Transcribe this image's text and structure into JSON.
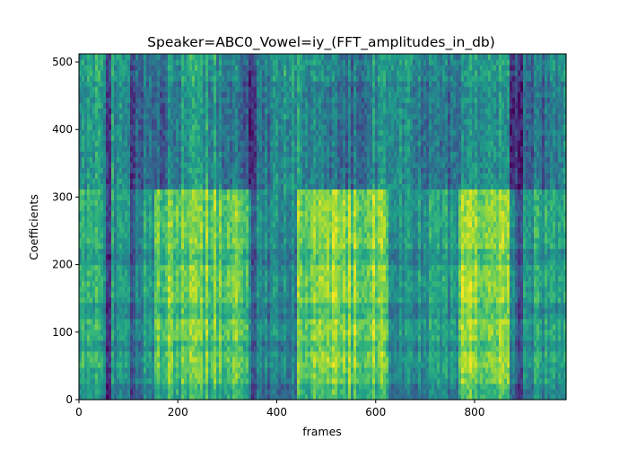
{
  "chart_data": {
    "type": "heatmap",
    "title": "Speaker=ABC0_Vowel=iy_(FFT_amplitudes_in_db)",
    "xlabel": "frames",
    "ylabel": "Coefficients",
    "xlim": [
      0,
      985
    ],
    "ylim": [
      0,
      512
    ],
    "xticks": [
      0,
      200,
      400,
      600,
      800
    ],
    "yticks": [
      0,
      100,
      200,
      300,
      400,
      500
    ],
    "colormap": "viridis",
    "grid": false,
    "legend": "none",
    "value_range": [
      0,
      1
    ],
    "high_band_rows": [
      310,
      512
    ],
    "harmonic_rows": [
      15,
      80,
      130,
      215
    ],
    "frame_segments": [
      {
        "start": 0,
        "end": 55,
        "level": 0.62
      },
      {
        "start": 55,
        "end": 150,
        "level": 0.55
      },
      {
        "start": 150,
        "end": 350,
        "level": 0.78
      },
      {
        "start": 350,
        "end": 440,
        "level": 0.5
      },
      {
        "start": 440,
        "end": 625,
        "level": 0.82
      },
      {
        "start": 625,
        "end": 765,
        "level": 0.55
      },
      {
        "start": 765,
        "end": 880,
        "level": 0.84
      },
      {
        "start": 880,
        "end": 985,
        "level": 0.58
      }
    ],
    "dark_frames": [
      60,
      110,
      350,
      880,
      890
    ]
  }
}
